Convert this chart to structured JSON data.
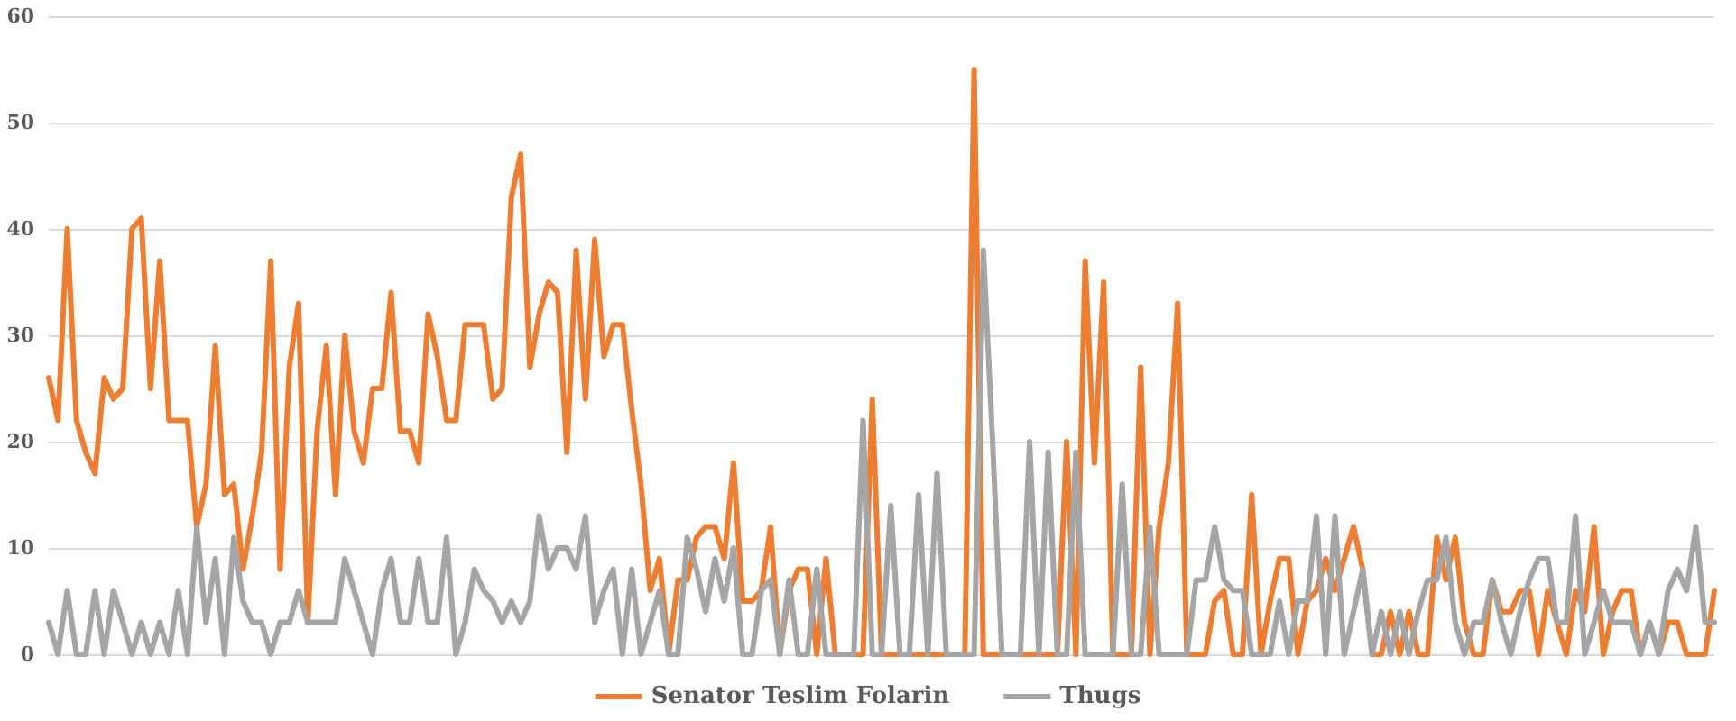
{
  "chart_data": {
    "type": "line",
    "categories": [
      null,
      null,
      null,
      null,
      null,
      null,
      null,
      null,
      null,
      null,
      null,
      null,
      null,
      null,
      null,
      null,
      null,
      null,
      null,
      null,
      null,
      null,
      null,
      null,
      null,
      null,
      null,
      null,
      null,
      null,
      null,
      null,
      null,
      null,
      null,
      null,
      null,
      null,
      null,
      null,
      null,
      null,
      null,
      null,
      null,
      null,
      null,
      null,
      null,
      null,
      null,
      null,
      null,
      null,
      null,
      null,
      null,
      null,
      null,
      null,
      null,
      null,
      null,
      null,
      null,
      null,
      null,
      null,
      null,
      null,
      null,
      null,
      null,
      null,
      null,
      null,
      null,
      null,
      null,
      null,
      null,
      null,
      null,
      null,
      null,
      null,
      null,
      null,
      null,
      null,
      null,
      null,
      null,
      null,
      null,
      null,
      null,
      null,
      null,
      null,
      null,
      null,
      null,
      null,
      null,
      null,
      null,
      null,
      null,
      null,
      null,
      null,
      null,
      null,
      null,
      null,
      null,
      null,
      null,
      null,
      null,
      null,
      null,
      null,
      null,
      null,
      null,
      null,
      null,
      null,
      null,
      null,
      null,
      null,
      null,
      null,
      null,
      null,
      null,
      null,
      null,
      null,
      null,
      null,
      null,
      null,
      null,
      null,
      null,
      null,
      null,
      null,
      null,
      null,
      null,
      null,
      null,
      null,
      null,
      null,
      null,
      null,
      null,
      null,
      null,
      null,
      null,
      null,
      null,
      null,
      null,
      null,
      null,
      null,
      null,
      null,
      null,
      null,
      null,
      null,
      null
    ],
    "series": [
      {
        "name": "Senator Teslim Folarin",
        "color": "#ed7d31",
        "values": [
          26,
          22,
          40,
          22,
          19,
          17,
          26,
          24,
          25,
          40,
          41,
          25,
          37,
          22,
          22,
          22,
          12,
          16,
          29,
          15,
          16,
          8,
          13,
          19,
          37,
          8,
          27,
          33,
          3,
          21,
          29,
          15,
          30,
          21,
          18,
          25,
          25,
          34,
          21,
          21,
          18,
          32,
          28,
          22,
          22,
          31,
          31,
          31,
          24,
          25,
          43,
          47,
          27,
          32,
          35,
          34,
          19,
          38,
          24,
          39,
          28,
          31,
          31,
          23,
          16,
          6,
          9,
          0,
          7,
          7,
          11,
          12,
          12,
          9,
          18,
          5,
          5,
          6,
          12,
          0,
          6,
          8,
          8,
          0,
          9,
          0,
          0,
          0,
          0,
          24,
          0,
          0,
          0,
          0,
          0,
          0,
          0,
          0,
          0,
          0,
          55,
          0,
          0,
          0,
          0,
          0,
          0,
          0,
          0,
          0,
          20,
          0,
          37,
          18,
          35,
          0,
          0,
          0,
          27,
          0,
          12,
          18,
          33,
          0,
          0,
          0,
          5,
          6,
          0,
          0,
          15,
          0,
          5,
          9,
          9,
          0,
          5,
          6,
          9,
          6,
          9,
          12,
          8,
          0,
          0,
          4,
          0,
          4,
          0,
          0,
          11,
          7,
          11,
          3,
          0,
          0,
          7,
          4,
          4,
          6,
          6,
          0,
          6,
          3,
          0,
          6,
          4,
          12,
          0,
          4,
          6,
          6,
          0,
          3,
          0,
          3,
          3,
          0,
          0,
          0,
          6
        ]
      },
      {
        "name": "Thugs",
        "color": "#a5a5a5",
        "values": [
          3,
          0,
          6,
          0,
          0,
          6,
          0,
          6,
          3,
          0,
          3,
          0,
          3,
          0,
          6,
          0,
          12,
          3,
          9,
          0,
          11,
          5,
          3,
          3,
          0,
          3,
          3,
          6,
          3,
          3,
          3,
          3,
          9,
          6,
          3,
          0,
          6,
          9,
          3,
          3,
          9,
          3,
          3,
          11,
          0,
          3,
          8,
          6,
          5,
          3,
          5,
          3,
          5,
          13,
          8,
          10,
          10,
          8,
          13,
          3,
          6,
          8,
          0,
          8,
          0,
          3,
          6,
          0,
          0,
          11,
          8,
          4,
          9,
          5,
          10,
          0,
          0,
          6,
          7,
          0,
          7,
          0,
          0,
          8,
          0,
          0,
          0,
          0,
          22,
          0,
          0,
          14,
          0,
          0,
          15,
          0,
          17,
          0,
          0,
          0,
          0,
          38,
          20,
          0,
          0,
          0,
          20,
          0,
          19,
          0,
          0,
          19,
          0,
          0,
          0,
          0,
          16,
          0,
          0,
          12,
          0,
          0,
          0,
          0,
          7,
          7,
          12,
          7,
          6,
          6,
          0,
          0,
          0,
          5,
          0,
          5,
          5,
          13,
          0,
          13,
          0,
          4,
          8,
          0,
          4,
          0,
          4,
          0,
          4,
          7,
          7,
          11,
          3,
          0,
          3,
          3,
          7,
          3,
          0,
          4,
          7,
          9,
          9,
          3,
          3,
          13,
          0,
          3,
          6,
          3,
          3,
          3,
          0,
          3,
          0,
          6,
          8,
          6,
          12,
          3,
          3
        ]
      }
    ],
    "ylim": [
      0,
      60
    ],
    "yticks": [
      0,
      10,
      20,
      30,
      40,
      50,
      60
    ],
    "grid": "y",
    "legend": "bottom",
    "tick_labels": "y",
    "line_style": "solid"
  }
}
